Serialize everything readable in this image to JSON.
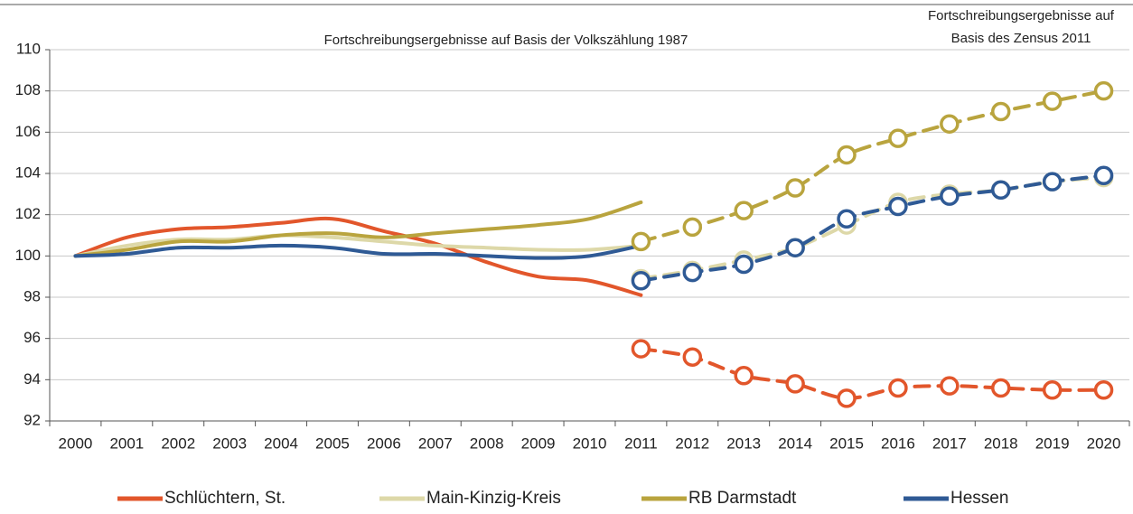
{
  "chart_data": {
    "type": "line",
    "annotations": [
      "Fortschreibungsergebnisse auf Basis der Volkszählung 1987",
      "Fortschreibungsergebnisse auf",
      "Basis des Zensus 2011"
    ],
    "categories": [
      "2000",
      "2001",
      "2002",
      "2003",
      "2004",
      "2005",
      "2006",
      "2007",
      "2008",
      "2009",
      "2010",
      "2011",
      "2012",
      "2013",
      "2014",
      "2015",
      "2016",
      "2017",
      "2018",
      "2019",
      "2020"
    ],
    "ylim": [
      92,
      110
    ],
    "yticks": [
      92,
      94,
      96,
      98,
      100,
      102,
      104,
      106,
      108,
      110
    ],
    "grid": true,
    "legend": "bottom",
    "series": [
      {
        "name": "Schlüchtern, St.",
        "color": "#e2562b",
        "values": [
          100,
          100.9,
          101.3,
          101.4,
          101.6,
          101.8,
          101.2,
          100.6,
          99.7,
          99.0,
          98.8,
          98.1,
          null,
          null,
          null,
          null,
          null,
          null,
          null,
          null,
          null
        ],
        "values_zensus": [
          null,
          null,
          null,
          null,
          null,
          null,
          null,
          null,
          null,
          null,
          null,
          95.5,
          95.1,
          94.2,
          93.8,
          93.1,
          93.6,
          93.7,
          93.6,
          93.5,
          93.5
        ]
      },
      {
        "name": "Main-Kinzig-Kreis",
        "color": "#ddd8a8",
        "values": [
          100,
          100.5,
          100.8,
          100.8,
          101.0,
          100.9,
          100.7,
          100.5,
          100.4,
          100.3,
          100.3,
          100.5,
          null,
          null,
          null,
          null,
          null,
          null,
          null,
          null,
          null
        ],
        "values_zensus": [
          null,
          null,
          null,
          null,
          null,
          null,
          null,
          null,
          null,
          null,
          null,
          98.9,
          99.3,
          99.8,
          100.4,
          101.5,
          102.6,
          103.0,
          103.2,
          103.6,
          103.8
        ]
      },
      {
        "name": "RB Darmstadt",
        "color": "#b9a43e",
        "values": [
          100,
          100.3,
          100.7,
          100.7,
          101.0,
          101.1,
          100.9,
          101.1,
          101.3,
          101.5,
          101.8,
          102.6,
          null,
          null,
          null,
          null,
          null,
          null,
          null,
          null,
          null
        ],
        "values_zensus": [
          null,
          null,
          null,
          null,
          null,
          null,
          null,
          null,
          null,
          null,
          null,
          100.7,
          101.4,
          102.2,
          103.3,
          104.9,
          105.7,
          106.4,
          107.0,
          107.5,
          108.0
        ]
      },
      {
        "name": "Hessen",
        "color": "#2f5a95",
        "values": [
          100,
          100.1,
          100.4,
          100.4,
          100.5,
          100.4,
          100.1,
          100.1,
          100.0,
          99.9,
          100.0,
          100.5,
          null,
          null,
          null,
          null,
          null,
          null,
          null,
          null,
          null
        ],
        "values_zensus": [
          null,
          null,
          null,
          null,
          null,
          null,
          null,
          null,
          null,
          null,
          null,
          98.8,
          99.2,
          99.6,
          100.4,
          101.8,
          102.4,
          102.9,
          103.2,
          103.6,
          103.9
        ]
      }
    ]
  }
}
